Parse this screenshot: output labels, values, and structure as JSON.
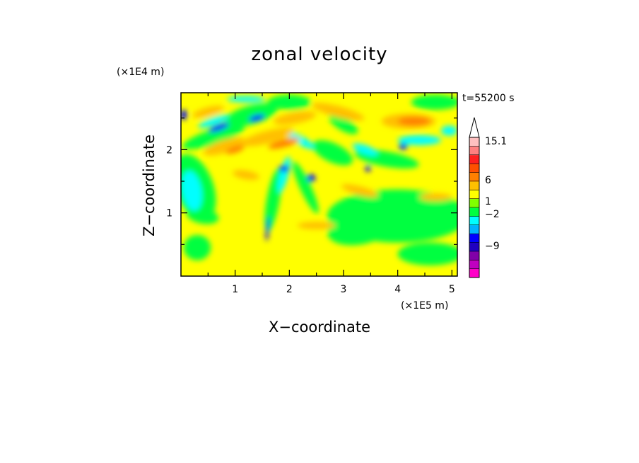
{
  "chart_data": {
    "type": "heatmap",
    "title": "zonal velocity",
    "xlabel": "X−coordinate",
    "ylabel": "Z−coordinate",
    "x_scale_label": "(×1E5 m)",
    "y_scale_label": "(×1E4 m)",
    "time_label": "t=55200 s",
    "xlim": [
      0,
      5.1
    ],
    "ylim": [
      0,
      2.9
    ],
    "x_ticks": [
      "1",
      "2",
      "3",
      "4",
      "5"
    ],
    "y_ticks": [
      "1",
      "2"
    ],
    "colorbar": {
      "labels": [
        "15.1",
        "6",
        "1",
        "−2",
        "−9"
      ],
      "bands": [
        {
          "color": "#ff00c8"
        },
        {
          "color": "#c000c0"
        },
        {
          "color": "#8000a8"
        },
        {
          "color": "#2000c0"
        },
        {
          "color": "#0000ff"
        },
        {
          "color": "#00b4ff"
        },
        {
          "color": "#00ffff"
        },
        {
          "color": "#00ff40"
        },
        {
          "color": "#80ff00"
        },
        {
          "color": "#ffff00"
        },
        {
          "color": "#ffc000"
        },
        {
          "color": "#ff8000"
        },
        {
          "color": "#ff5000"
        },
        {
          "color": "#ff2020"
        },
        {
          "color": "#ff8080"
        },
        {
          "color": "#ffc0c0"
        }
      ],
      "extend": "max"
    },
    "field_colors": {
      "strong_negative": "#0000ff",
      "negative": "#00b4ff",
      "weak_negative": "#00ffff",
      "near_zero": "#00ff40",
      "weak_positive": "#ffff00",
      "positive": "#ffc000",
      "strong_positive": "#ff8000"
    }
  }
}
